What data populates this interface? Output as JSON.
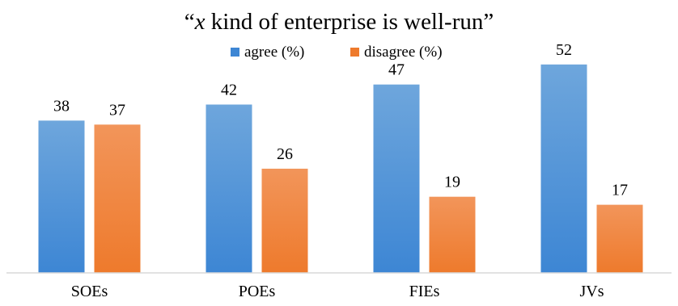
{
  "chart_data": {
    "type": "bar",
    "title": "“x kind of enterprise is well-run”",
    "title_parts": {
      "open_quote": "“",
      "italic": "x",
      "rest": " kind of enterprise is well-run”"
    },
    "categories": [
      "SOEs",
      "POEs",
      "FIEs",
      "JVs"
    ],
    "series": [
      {
        "name": "agree (%)",
        "values": [
          38,
          42,
          47,
          52
        ],
        "color_top": "#6ea6dc",
        "color_bottom": "#3d86d4"
      },
      {
        "name": "disagree (%)",
        "values": [
          37,
          26,
          19,
          17
        ],
        "color_top": "#f2955a",
        "color_bottom": "#ee7a2c"
      }
    ],
    "ylim": [
      0,
      56
    ],
    "legend": "top-center",
    "grid": false,
    "data_labels": true
  }
}
